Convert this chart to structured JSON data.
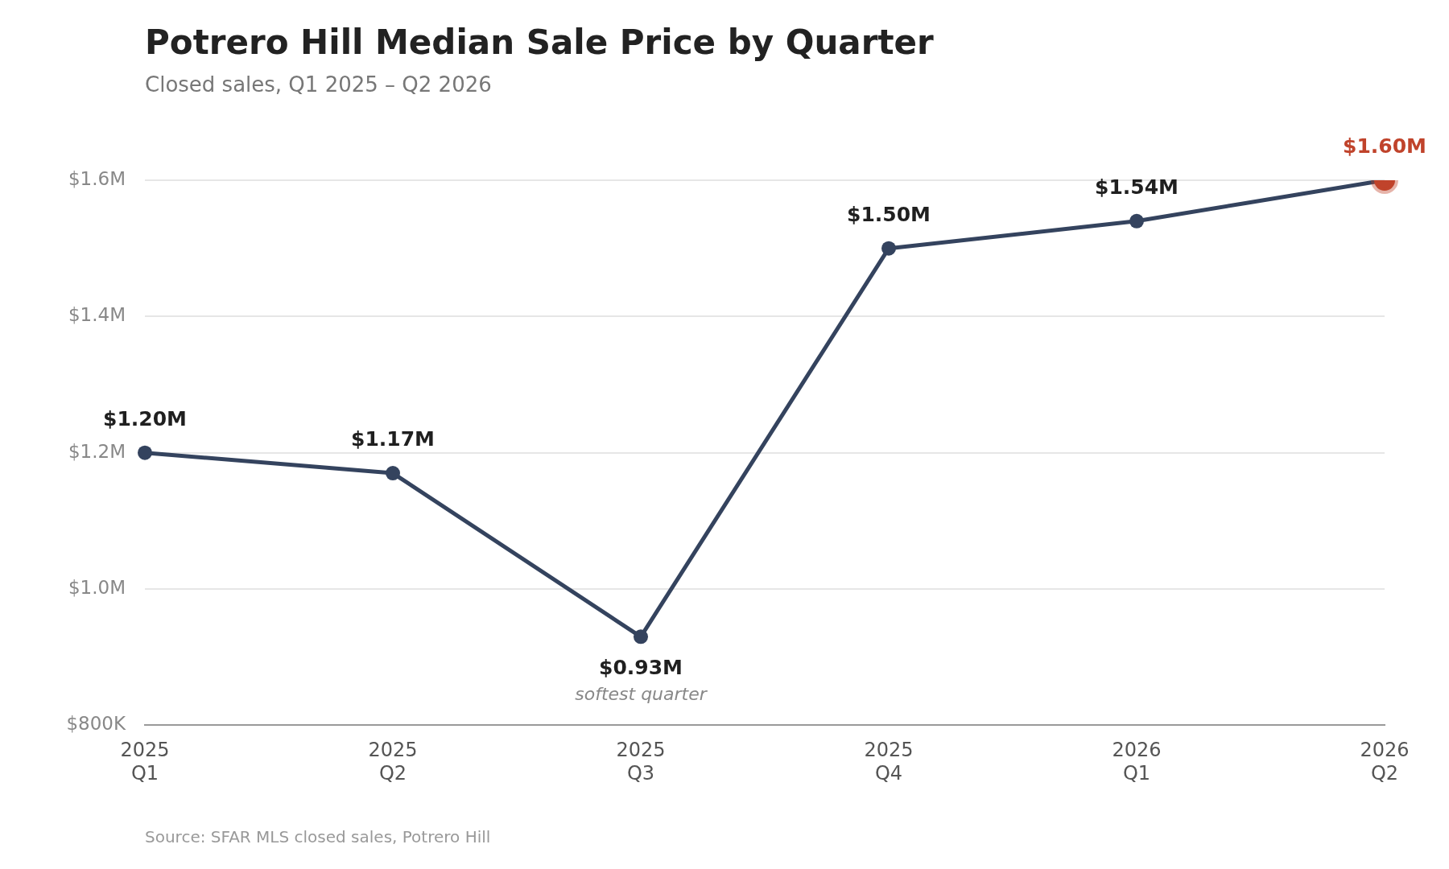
{
  "chart_data": {
    "type": "line",
    "title": "Potrero Hill Median Sale Price by Quarter",
    "subtitle": "Closed sales, Q1 2025 – Q2 2026",
    "categories": [
      "2025 Q1",
      "2025 Q2",
      "2025 Q3",
      "2025 Q4",
      "2026 Q1",
      "2026 Q2"
    ],
    "series": [
      {
        "color": "#34435e",
        "colors": [
          "#34435e",
          "#34435e",
          "#34435e",
          "#34435e",
          "#34435e",
          "#c0432b"
        ],
        "values": [
          1200000,
          1170000,
          930000,
          1500000,
          1540000,
          1600000
        ],
        "value_labels": [
          "$1.20M",
          "$1.17M",
          "$0.93M",
          "$1.50M",
          "$1.54M",
          "$1.60M"
        ]
      }
    ],
    "ylim": [
      800000,
      1600000
    ],
    "yticks": [
      {
        "value": 800000,
        "label": "$800K"
      },
      {
        "value": 1000000,
        "label": "$1.0M"
      },
      {
        "value": 1200000,
        "label": "$1.2M"
      },
      {
        "value": 1400000,
        "label": "$1.4M"
      },
      {
        "value": 1600000,
        "label": "$1.6M"
      }
    ],
    "grid": "y",
    "legend": false,
    "marker": "circle",
    "line_style": "solid",
    "annotations": [
      {
        "text": "softest quarter",
        "x": "2025 Q3",
        "y": 930000
      },
      "Source: SFAR MLS closed sales, Potrero Hill"
    ]
  }
}
